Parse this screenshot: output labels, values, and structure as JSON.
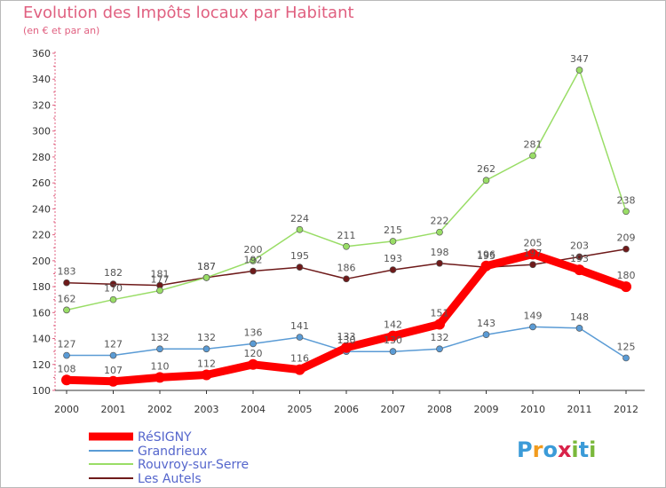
{
  "title": "Evolution des Impôts locaux par Habitant",
  "subtitle": "(en € et par an)",
  "brand": "Proxiti",
  "chart_data": {
    "type": "line",
    "x": [
      2000,
      2001,
      2002,
      2003,
      2004,
      2005,
      2006,
      2007,
      2008,
      2009,
      2010,
      2011,
      2012
    ],
    "ylim": [
      100,
      360
    ],
    "yticks": [
      100,
      120,
      140,
      160,
      180,
      200,
      220,
      240,
      260,
      280,
      300,
      320,
      340,
      360
    ],
    "grid": false,
    "legend": "bottom-left",
    "series": [
      {
        "name": "RéSIGNY",
        "color": "#ff0000",
        "values": [
          108,
          107,
          110,
          112,
          120,
          116,
          133,
          142,
          151,
          196,
          205,
          193,
          180
        ]
      },
      {
        "name": "Grandrieux",
        "color": "#5a9bd5",
        "values": [
          127,
          127,
          132,
          132,
          136,
          141,
          130,
          130,
          132,
          143,
          149,
          148,
          125
        ]
      },
      {
        "name": "Rouvroy-sur-Serre",
        "color": "#99dd66",
        "values": [
          162,
          170,
          177,
          187,
          200,
          224,
          211,
          215,
          222,
          262,
          281,
          347,
          238
        ]
      },
      {
        "name": "Les Autels",
        "color": "#6e1a1a",
        "values": [
          183,
          182,
          181,
          187,
          192,
          195,
          186,
          193,
          198,
          195,
          197,
          203,
          209
        ]
      }
    ]
  }
}
